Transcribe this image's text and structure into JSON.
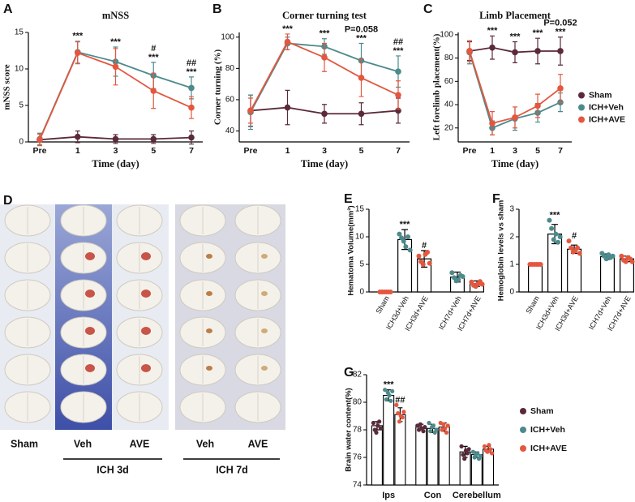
{
  "chart_data": [
    {
      "type": "line",
      "panel": "A",
      "title": "mNSS",
      "y_label": "mNSS score",
      "x_label": "Time (day)",
      "categories": [
        "Pre",
        "1",
        "3",
        "5",
        "7"
      ],
      "ylim": [
        0,
        15
      ],
      "yticks": [
        0,
        5,
        10,
        15
      ],
      "legend": false,
      "series": [
        {
          "name": "Sham",
          "color": "#5a2a3a",
          "values": [
            0.3,
            0.7,
            0.4,
            0.4,
            0.6
          ],
          "errors": [
            0.8,
            0.8,
            0.6,
            0.6,
            0.9
          ]
        },
        {
          "name": "ICH+Veh",
          "color": "#4d8a8c",
          "values": [
            0.4,
            12.3,
            11,
            9.1,
            7.4
          ],
          "errors": [
            0.8,
            1.5,
            2,
            1.8,
            1.5
          ]
        },
        {
          "name": "ICH+AVE",
          "color": "#e4573f",
          "values": [
            0.3,
            12.2,
            10.3,
            7,
            4.7
          ],
          "errors": [
            0.8,
            1.5,
            2.5,
            2.4,
            1.5
          ]
        }
      ],
      "significance": [
        [],
        [
          "***"
        ],
        [
          "***"
        ],
        [
          "#",
          "***"
        ],
        [
          "##",
          "***"
        ]
      ]
    },
    {
      "type": "line",
      "panel": "B",
      "title": "Corner turning test",
      "y_label": "Corner turning (%)",
      "x_label": "Time (day)",
      "categories": [
        "Pre",
        "1",
        "3",
        "5",
        "7"
      ],
      "ylim": [
        33,
        103
      ],
      "yticks": [
        40,
        60,
        80,
        100
      ],
      "legend": false,
      "series": [
        {
          "name": "Sham",
          "color": "#5a2a3a",
          "values": [
            53,
            55,
            51,
            51,
            53
          ],
          "errors": [
            10,
            11,
            6,
            7,
            8
          ]
        },
        {
          "name": "ICH+Veh",
          "color": "#4d8a8c",
          "values": [
            52,
            96,
            94,
            85,
            78
          ],
          "errors": [
            11,
            4,
            5,
            11,
            10
          ]
        },
        {
          "name": "ICH+AVE",
          "color": "#e4573f",
          "values": [
            53,
            97,
            87,
            74,
            63
          ],
          "errors": [
            8,
            5,
            9,
            12,
            9
          ]
        }
      ],
      "significance": [
        [],
        [
          "***"
        ],
        [
          "***"
        ],
        [
          "P=0.058",
          "***"
        ],
        [
          "##",
          "***"
        ]
      ]
    },
    {
      "type": "line",
      "panel": "C",
      "title": "Limb Placement",
      "y_label": "Left forelimb placement(%)",
      "x_label": "Time (day)",
      "categories": [
        "Pre",
        "1",
        "3",
        "5",
        "7"
      ],
      "ylim": [
        8,
        102
      ],
      "yticks": [
        20,
        40,
        60,
        80,
        100
      ],
      "legend": "right",
      "series": [
        {
          "name": "Sham",
          "color": "#5a2a3a",
          "values": [
            86,
            89,
            85,
            86,
            86
          ],
          "errors": [
            8,
            10,
            9,
            11,
            12
          ]
        },
        {
          "name": "ICH+Veh",
          "color": "#4d8a8c",
          "values": [
            85,
            20,
            28,
            33,
            42
          ],
          "errors": [
            10,
            6,
            10,
            8,
            8
          ]
        },
        {
          "name": "ICH+AVE",
          "color": "#e4573f",
          "values": [
            86,
            24,
            29,
            39,
            54
          ],
          "errors": [
            9,
            10,
            9,
            10,
            12
          ]
        }
      ],
      "significance": [
        [],
        [
          "***"
        ],
        [
          "***"
        ],
        [
          "***"
        ],
        [
          "P=0.052",
          "***"
        ]
      ]
    },
    {
      "type": "image",
      "panel": "D",
      "column_labels": [
        "Sham",
        "Veh",
        "AVE",
        "Veh",
        "AVE"
      ],
      "group_labels": [
        "ICH 3d",
        "ICH 7d"
      ]
    },
    {
      "type": "bar",
      "panel": "E",
      "y_label": "Hematoma Volume(mm³)",
      "categories": [
        "Sham",
        "ICH3d+Veh",
        "ICH3d+AVE",
        "ICH7d+Veh",
        "ICH7d+AVE"
      ],
      "ylim": [
        0,
        15
      ],
      "yticks": [
        0,
        5,
        10,
        15
      ],
      "values": [
        0,
        9.5,
        6,
        2.7,
        1.5
      ],
      "errors": [
        0.1,
        1.8,
        1.5,
        0.9,
        0.5
      ],
      "point_colors": [
        "#e4573f",
        "#4d8a8c",
        "#e4573f",
        "#4d8a8c",
        "#e4573f"
      ],
      "points": [
        [
          0,
          0,
          0,
          0,
          0,
          0
        ],
        [
          10.5,
          9.8,
          9.2,
          8.2,
          10,
          7.6
        ],
        [
          6.5,
          5.5,
          5,
          6.8,
          7.2,
          5.2
        ],
        [
          3.5,
          2.6,
          2,
          2.2,
          3,
          2.8
        ],
        [
          1.8,
          1.2,
          1,
          1.5,
          1.9,
          1.4
        ]
      ],
      "significance": [
        [],
        [
          "***"
        ],
        [
          "#"
        ],
        [],
        []
      ]
    },
    {
      "type": "bar",
      "panel": "F",
      "y_label": "Hemoglobin levels vs sham",
      "categories": [
        "Sham",
        "ICH3d+Veh",
        "ICH3d+AVE",
        "ICH7d+Veh",
        "ICH7d+AVE"
      ],
      "ylim": [
        0,
        3
      ],
      "yticks": [
        0,
        1,
        2,
        3
      ],
      "values": [
        1,
        2.1,
        1.55,
        1.28,
        1.2
      ],
      "errors": [
        0.02,
        0.35,
        0.15,
        0.1,
        0.1
      ],
      "point_colors": [
        "#e4573f",
        "#4d8a8c",
        "#e4573f",
        "#4d8a8c",
        "#e4573f"
      ],
      "points": [
        [
          1,
          1,
          1,
          1,
          1,
          1
        ],
        [
          2.6,
          2.3,
          1.9,
          2.1,
          1.8,
          2.0
        ],
        [
          1.85,
          1.6,
          1.45,
          1.5,
          1.6,
          1.4
        ],
        [
          1.4,
          1.3,
          1.2,
          1.35,
          1.25,
          1.3
        ],
        [
          1.3,
          1.15,
          1.1,
          1.25,
          1.2,
          1.1
        ]
      ],
      "significance": [
        [],
        [
          "***"
        ],
        [
          "#"
        ],
        [],
        []
      ]
    },
    {
      "type": "grouped_bar",
      "panel": "G",
      "y_label": "Brain water content(%)",
      "categories": [
        "Ips",
        "Con",
        "Cerebellum"
      ],
      "ylim": [
        74,
        82
      ],
      "yticks": [
        74,
        76,
        78,
        80,
        82
      ],
      "legend": "right",
      "series": [
        {
          "name": "Sham",
          "color": "#5a2a3a",
          "values": [
            78.3,
            78.2,
            76.4
          ],
          "errors": [
            0.3,
            0.2,
            0.4
          ],
          "points": [
            [
              78.5,
              78,
              77.8,
              78.3,
              78.6,
              78.1
            ],
            [
              78.3,
              78,
              78.4,
              78.1,
              77.9,
              78.2
            ],
            [
              76.8,
              76.2,
              75.9,
              76.5,
              76.3,
              76.6
            ]
          ],
          "significance": [
            [],
            [],
            []
          ]
        },
        {
          "name": "ICH+Veh",
          "color": "#4d8a8c",
          "values": [
            80.5,
            78.1,
            76.2
          ],
          "errors": [
            0.4,
            0.3,
            0.2
          ],
          "points": [
            [
              80.9,
              80.2,
              80.7,
              80.5,
              80.1,
              80.8
            ],
            [
              78.5,
              77.9,
              78.2,
              78.3,
              77.8,
              78
            ],
            [
              76.4,
              76,
              76.2,
              76.3,
              75.9,
              76.1
            ]
          ],
          "significance": [
            [
              "***"
            ],
            [],
            []
          ]
        },
        {
          "name": "ICH+AVE",
          "color": "#e4573f",
          "values": [
            79.1,
            78.2,
            76.6
          ],
          "errors": [
            0.5,
            0.3,
            0.2
          ],
          "points": [
            [
              79.8,
              79.2,
              78.6,
              79,
              78.9,
              79.3
            ],
            [
              78.5,
              78,
              78.4,
              78.1,
              77.8,
              78.3
            ],
            [
              76.8,
              76.5,
              76.4,
              76.9,
              76.6,
              76.3
            ]
          ],
          "significance": [
            [
              "##"
            ],
            [],
            []
          ]
        }
      ]
    }
  ]
}
